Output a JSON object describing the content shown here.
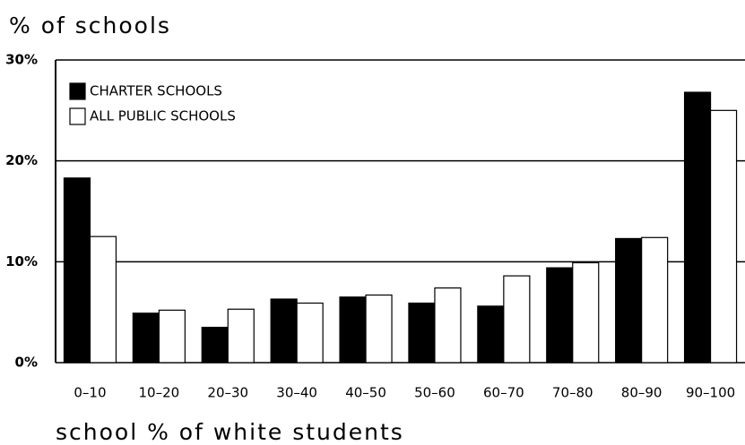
{
  "chart_data": {
    "type": "bar",
    "ylabel": "% of schools",
    "xlabel": "school % of white students",
    "categories": [
      "0–10",
      "10–20",
      "20–30",
      "30–40",
      "40–50",
      "50–60",
      "60–70",
      "70–80",
      "80–90",
      "90–100"
    ],
    "series": [
      {
        "name": "CHARTER SCHOOLS",
        "color": "#000000",
        "values": [
          18.3,
          4.9,
          3.5,
          6.3,
          6.5,
          5.9,
          5.6,
          9.4,
          12.3,
          26.8
        ]
      },
      {
        "name": "ALL PUBLIC SCHOOLS",
        "color": "#ffffff",
        "values": [
          12.5,
          5.2,
          5.3,
          5.9,
          6.7,
          7.4,
          8.6,
          9.9,
          12.4,
          25.0
        ]
      }
    ],
    "ylim": [
      0,
      30
    ],
    "yticks": [
      {
        "value": 0,
        "label": "0%"
      },
      {
        "value": 10,
        "label": "10%"
      },
      {
        "value": 20,
        "label": "20%"
      },
      {
        "value": 30,
        "label": "30%"
      }
    ],
    "grid": true,
    "legend": "upper left"
  }
}
